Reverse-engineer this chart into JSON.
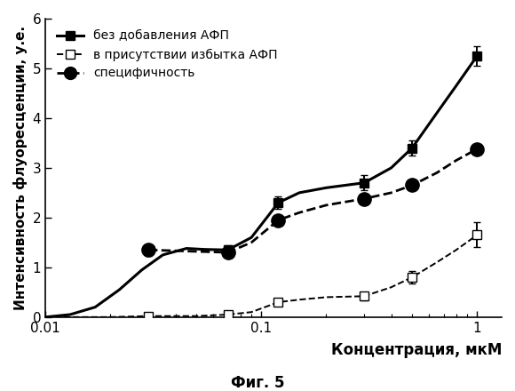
{
  "xlabel": "Концентрация, мкМ",
  "ylabel": "Интенсивность флуоресценции, у.е.",
  "caption": "Фиг. 5",
  "xlim": [
    0.01,
    1.3
  ],
  "ylim": [
    0,
    6
  ],
  "yticks": [
    0,
    1,
    2,
    3,
    4,
    5,
    6
  ],
  "series1_label": "без добавления АФП",
  "series1_x": [
    0.03,
    0.07,
    0.12,
    0.3,
    0.5,
    1.0
  ],
  "series1_y": [
    1.35,
    1.35,
    2.3,
    2.7,
    3.4,
    5.25
  ],
  "series1_yerr": [
    0.12,
    0.1,
    0.12,
    0.15,
    0.15,
    0.2
  ],
  "series2_label": "в присутствии избытка АФП",
  "series2_x": [
    0.03,
    0.07,
    0.12,
    0.3,
    0.5,
    1.0
  ],
  "series2_y": [
    0.02,
    0.05,
    0.3,
    0.42,
    0.8,
    1.65
  ],
  "series2_yerr": [
    0.02,
    0.04,
    0.08,
    0.08,
    0.12,
    0.25
  ],
  "series3_label": "специфичность",
  "series3_x": [
    0.03,
    0.07,
    0.12,
    0.3,
    0.5,
    1.0
  ],
  "series3_y": [
    1.35,
    1.3,
    1.95,
    2.38,
    2.65,
    3.38
  ],
  "curve1_x": [
    0.01,
    0.013,
    0.017,
    0.022,
    0.028,
    0.035,
    0.045,
    0.055,
    0.07,
    0.09,
    0.12,
    0.15,
    0.2,
    0.3,
    0.4,
    0.5,
    0.65,
    0.8,
    1.0
  ],
  "curve1_y": [
    0.0,
    0.05,
    0.2,
    0.55,
    0.95,
    1.25,
    1.38,
    1.36,
    1.35,
    1.6,
    2.3,
    2.5,
    2.6,
    2.7,
    3.0,
    3.4,
    4.1,
    4.65,
    5.25
  ],
  "curve2_x": [
    0.01,
    0.02,
    0.03,
    0.05,
    0.07,
    0.09,
    0.12,
    0.15,
    0.2,
    0.3,
    0.4,
    0.5,
    0.65,
    0.8,
    1.0
  ],
  "curve2_y": [
    0.0,
    0.0,
    0.02,
    0.02,
    0.05,
    0.1,
    0.3,
    0.35,
    0.4,
    0.42,
    0.6,
    0.8,
    1.1,
    1.35,
    1.65
  ],
  "curve3_x": [
    0.03,
    0.05,
    0.07,
    0.09,
    0.12,
    0.15,
    0.2,
    0.3,
    0.4,
    0.5,
    0.65,
    0.8,
    1.0
  ],
  "curve3_y": [
    1.35,
    1.32,
    1.3,
    1.5,
    1.95,
    2.1,
    2.25,
    2.38,
    2.5,
    2.65,
    2.9,
    3.15,
    3.38
  ],
  "background_color": "#ffffff",
  "line_color": "#000000",
  "font_family": "DejaVu Sans"
}
